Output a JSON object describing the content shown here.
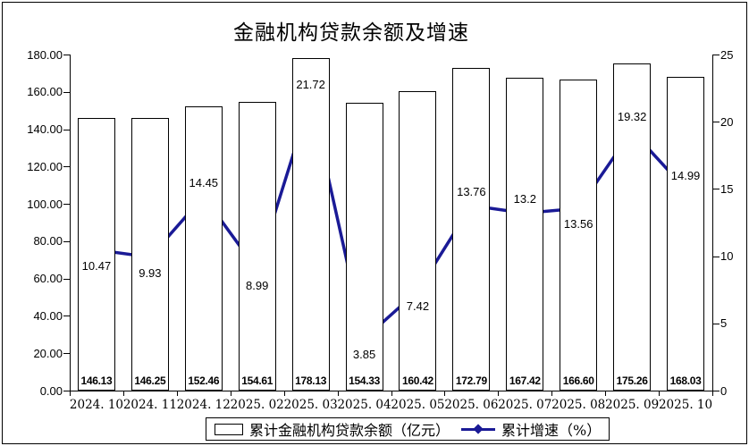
{
  "window": {
    "title": "金融机构贷款余额及增速"
  },
  "chart_data": {
    "type": "bar",
    "combo": "bar+line",
    "title": "金融机构贷款余额及增速",
    "categories": [
      "2024. 10",
      "2024. 11",
      "2024. 12",
      "2025. 02",
      "2025. 03",
      "2025. 04",
      "2025. 05",
      "2025. 06",
      "2025. 07",
      "2025. 08",
      "2025. 09",
      "2025. 10"
    ],
    "series": [
      {
        "name": "累计金融机构贷款余额（亿元）",
        "type": "bar",
        "axis": "left",
        "values": [
          146.13,
          146.25,
          152.46,
          154.61,
          178.13,
          154.33,
          160.42,
          172.79,
          167.42,
          166.6,
          175.26,
          168.03
        ],
        "labels": [
          "146.13",
          "146.25",
          "152.46",
          "154.61",
          "178.13",
          "154.33",
          "160.42",
          "172.79",
          "167.42",
          "166.60",
          "175.26",
          "168.03"
        ]
      },
      {
        "name": "累计增速（%）",
        "type": "line",
        "axis": "right",
        "values": [
          10.47,
          9.93,
          14.45,
          8.99,
          21.72,
          3.85,
          7.42,
          13.76,
          13.2,
          13.56,
          19.32,
          14.99
        ],
        "labels": [
          "10.47",
          "9.93",
          "14.45",
          "8.99",
          "21.72",
          "3.85",
          "7.42",
          "13.76",
          "13.2",
          "13.56",
          "19.32",
          "14.99"
        ],
        "label_positions": [
          "below",
          "below",
          "above",
          "below",
          "above",
          "below",
          "below",
          "above",
          "above",
          "below",
          "above",
          "above"
        ]
      }
    ],
    "left_axis": {
      "min": 0,
      "max": 180,
      "step": 20,
      "tick_labels": [
        "0.00",
        "20.00",
        "40.00",
        "60.00",
        "80.00",
        "100.00",
        "120.00",
        "140.00",
        "160.00",
        "180.00"
      ]
    },
    "right_axis": {
      "min": 0,
      "max": 25,
      "step": 5,
      "tick_labels": [
        "0",
        "5",
        "10",
        "15",
        "20",
        "25"
      ]
    },
    "grid": false,
    "legend_position": "bottom",
    "colors": {
      "line": "#1a1a96",
      "bar_fill": "#ffffff",
      "bar_border": "#000000",
      "text": "#000000",
      "background": "#ffffff"
    }
  },
  "legend": {
    "items": [
      {
        "label": "累计金融机构贷款余额（亿元）",
        "swatch": "bar"
      },
      {
        "label": "累计增速（%）",
        "swatch": "line"
      }
    ]
  }
}
